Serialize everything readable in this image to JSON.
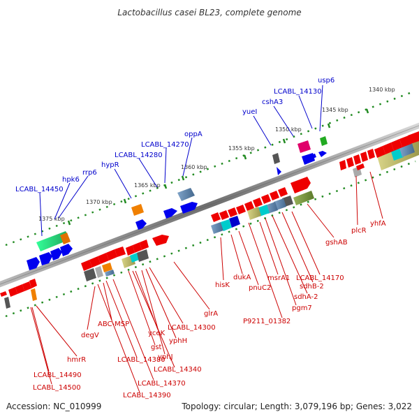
{
  "title": "Lactobacillus casei BL23, complete genome",
  "footer": {
    "accession": "Accession: NC_010999",
    "summary": "Topology: circular; Length: 3,079,196 bp; Genes: 3,022"
  },
  "colors": {
    "forward_label": "#0000cc",
    "reverse_label": "#cc0000",
    "tick": "#228b22",
    "forward_gene": "#0000ee",
    "reverse_gene": "#ee0000",
    "backbone": "#666666"
  },
  "scale": {
    "unit": "kbp",
    "ticks": [
      "1340 kbp",
      "1345 kbp",
      "1350 kbp",
      "1355 kbp",
      "1360 kbp",
      "1365 kbp",
      "1370 kbp",
      "1375 kbp"
    ]
  },
  "forward_labels": [
    "usp6",
    "LCABL_14130",
    "cshA3",
    "yueI",
    "oppA",
    "LCABL_14270",
    "LCABL_14280",
    "hypR",
    "rrp6",
    "hpk6",
    "LCABL_14450"
  ],
  "reverse_labels": [
    "yhfA",
    "plcR",
    "gshAB",
    "LCABL_14170",
    "sdhB-2",
    "msrA1",
    "sdhA-2",
    "pnuC2",
    "pgm7",
    "dukA",
    "P9211_01382",
    "hisK",
    "glrA",
    "LCABL_14300",
    "yphH",
    "yceK",
    "yphJ",
    "gst",
    "LCABL_14340",
    "ABC-MSP",
    "LCABL_14380",
    "LCABL_14370",
    "LCABL_14390",
    "degV",
    "hmrR",
    "LCABL_14490",
    "LCABL_14500"
  ]
}
